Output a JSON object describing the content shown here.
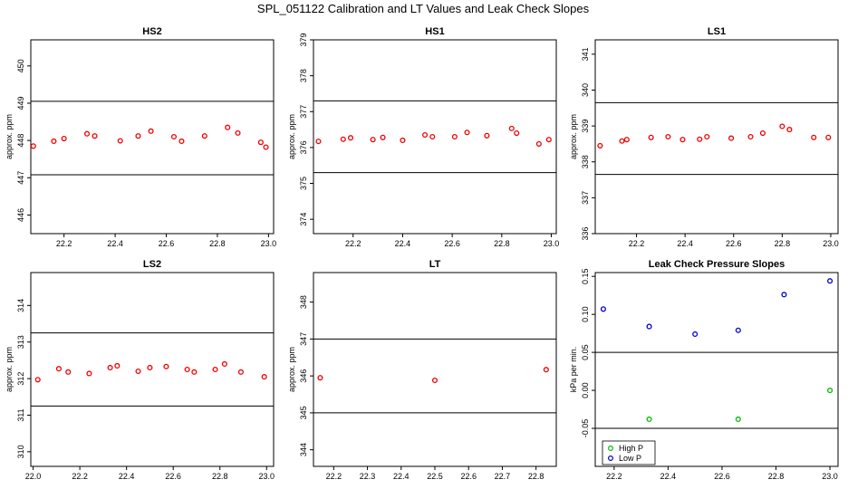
{
  "suptitle": "SPL_051122  Calibration and LT Values and Leak Check Slopes",
  "chart_data": [
    {
      "type": "scatter",
      "title": "HS2",
      "ylabel": "approx. ppm",
      "xlim": [
        22.07,
        23.02
      ],
      "ylim": [
        445.5,
        450.7
      ],
      "xticks": [
        "22.2",
        "22.4",
        "22.6",
        "22.8",
        "23.0"
      ],
      "yticks": [
        "446",
        "447",
        "448",
        "449",
        "450"
      ],
      "hlines": [
        449.05,
        447.08
      ],
      "color": "#ee0000",
      "x": [
        22.08,
        22.16,
        22.2,
        22.29,
        22.32,
        22.42,
        22.49,
        22.54,
        22.63,
        22.66,
        22.75,
        22.84,
        22.88,
        22.97,
        22.99
      ],
      "y": [
        447.85,
        447.98,
        448.05,
        448.18,
        448.12,
        447.99,
        448.12,
        448.25,
        448.1,
        447.98,
        448.12,
        448.35,
        448.2,
        447.95,
        447.82
      ]
    },
    {
      "type": "scatter",
      "title": "HS1",
      "ylabel": "approx. ppm",
      "xlim": [
        22.04,
        23.02
      ],
      "ylim": [
        373.6,
        379.0
      ],
      "xticks": [
        "22.2",
        "22.4",
        "22.6",
        "22.8",
        "23.0"
      ],
      "yticks": [
        "374",
        "375",
        "376",
        "377",
        "378",
        "379"
      ],
      "hlines": [
        377.3,
        375.3
      ],
      "color": "#ee0000",
      "x": [
        22.06,
        22.16,
        22.19,
        22.28,
        22.32,
        22.4,
        22.49,
        22.52,
        22.61,
        22.66,
        22.74,
        22.84,
        22.86,
        22.95,
        22.99
      ],
      "y": [
        376.17,
        376.23,
        376.27,
        376.22,
        376.28,
        376.2,
        376.35,
        376.3,
        376.3,
        376.42,
        376.33,
        376.53,
        376.4,
        376.1,
        376.22
      ]
    },
    {
      "type": "scatter",
      "title": "LS1",
      "ylabel": "approx. ppm",
      "xlim": [
        22.03,
        23.03
      ],
      "ylim": [
        336.0,
        341.4
      ],
      "xticks": [
        "22.2",
        "22.4",
        "22.6",
        "22.8",
        "23.0"
      ],
      "yticks": [
        "336",
        "337",
        "338",
        "339",
        "340",
        "341"
      ],
      "hlines": [
        339.65,
        337.65
      ],
      "color": "#ee0000",
      "x": [
        22.05,
        22.14,
        22.16,
        22.26,
        22.33,
        22.39,
        22.46,
        22.49,
        22.59,
        22.67,
        22.72,
        22.8,
        22.83,
        22.93,
        22.99
      ],
      "y": [
        338.45,
        338.58,
        338.62,
        338.68,
        338.7,
        338.62,
        338.63,
        338.7,
        338.66,
        338.7,
        338.8,
        338.99,
        338.9,
        338.68,
        338.68
      ]
    },
    {
      "type": "scatter",
      "title": "LS2",
      "ylabel": "approx. ppm",
      "xlim": [
        21.99,
        23.03
      ],
      "ylim": [
        309.6,
        314.9
      ],
      "xticks": [
        "22.0",
        "22.2",
        "22.4",
        "22.6",
        "22.8",
        "23.0"
      ],
      "yticks": [
        "310",
        "311",
        "312",
        "313",
        "314"
      ],
      "hlines": [
        313.25,
        311.25
      ],
      "color": "#ee0000",
      "x": [
        22.02,
        22.11,
        22.15,
        22.24,
        22.33,
        22.36,
        22.45,
        22.5,
        22.57,
        22.66,
        22.69,
        22.78,
        22.82,
        22.89,
        22.99
      ],
      "y": [
        311.97,
        312.27,
        312.18,
        312.14,
        312.3,
        312.35,
        312.2,
        312.3,
        312.33,
        312.25,
        312.18,
        312.25,
        312.4,
        312.18,
        312.05
      ]
    },
    {
      "type": "scatter",
      "title": "LT",
      "ylabel": "approx. ppm",
      "xlim": [
        22.14,
        22.86
      ],
      "ylim": [
        343.55,
        348.8
      ],
      "xticks": [
        "22.2",
        "22.3",
        "22.4",
        "22.5",
        "22.6",
        "22.7",
        "22.8"
      ],
      "yticks": [
        "344",
        "345",
        "346",
        "347",
        "348"
      ],
      "hlines": [
        347.0,
        345.0
      ],
      "color": "#ee0000",
      "x": [
        22.16,
        22.5,
        22.83
      ],
      "y": [
        345.95,
        345.88,
        346.17
      ]
    },
    {
      "type": "scatter",
      "title": "Leak Check Pressure Slopes",
      "ylabel": "kPa per min.",
      "xlim": [
        22.13,
        23.03
      ],
      "ylim": [
        -0.1,
        0.155
      ],
      "xticks": [
        "22.2",
        "22.4",
        "22.6",
        "22.8",
        "23.0"
      ],
      "yticks": [
        "-0.05",
        "0.00",
        "0.05",
        "0.10",
        "0.15"
      ],
      "hlines": [
        0.05,
        -0.05
      ],
      "legend": "bottom-left",
      "series": [
        {
          "name": "High P",
          "color": "#00bb00",
          "x": [
            22.33,
            22.66,
            23.0
          ],
          "y": [
            -0.038,
            -0.038,
            0.0
          ]
        },
        {
          "name": "Low P",
          "color": "#0000cc",
          "x": [
            22.16,
            22.33,
            22.5,
            22.66,
            22.83,
            23.0
          ],
          "y": [
            0.107,
            0.084,
            0.074,
            0.079,
            0.126,
            0.144
          ]
        }
      ]
    }
  ]
}
